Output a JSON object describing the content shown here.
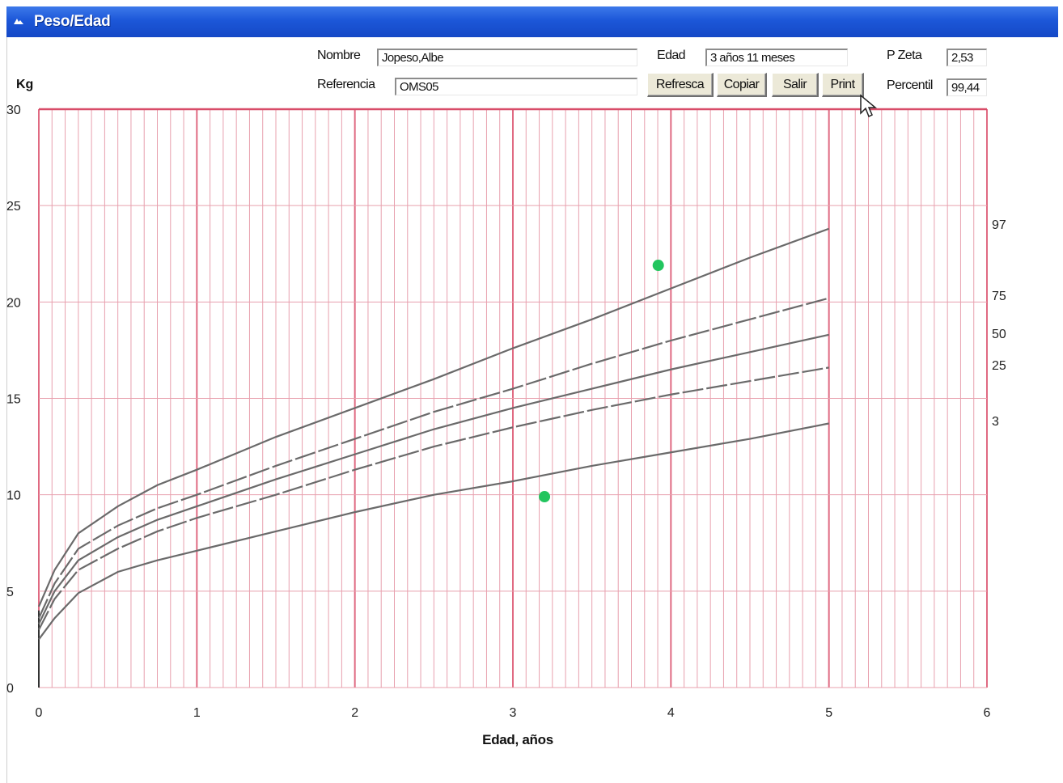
{
  "window": {
    "title": "Peso/Edad"
  },
  "form": {
    "nombre_label": "Nombre",
    "nombre_value": "Jopeso,Albe",
    "referencia_label": "Referencia",
    "referencia_value": "OMS05",
    "edad_label": "Edad",
    "edad_value": "3 años 11 meses",
    "pzeta_label": "P Zeta",
    "pzeta_value": "2,53",
    "percentil_label": "Percentil",
    "percentil_value": "99,44"
  },
  "buttons": {
    "refresca": "Refresca",
    "copiar": "Copiar",
    "salir": "Salir",
    "print": "Print"
  },
  "icons": {
    "window": "window-icon",
    "cursor": "mouse-pointer-icon"
  },
  "chart_data": {
    "type": "line",
    "title": "",
    "xlabel": "Edad, años",
    "ylabel": "Kg",
    "xlim": [
      0,
      6
    ],
    "ylim": [
      0,
      30
    ],
    "x_ticks": [
      0,
      1,
      2,
      3,
      4,
      5,
      6
    ],
    "y_ticks": [
      0,
      5,
      10,
      15,
      20,
      25,
      30
    ],
    "grid": true,
    "grid_color": "#e8a0ae",
    "grid_major_color": "#e06a82",
    "line_color": "#6a6a6a",
    "point_color": "#22c55e",
    "x": [
      0,
      0.1,
      0.25,
      0.5,
      0.75,
      1,
      1.5,
      2,
      2.5,
      3,
      3.5,
      4,
      4.5,
      5
    ],
    "series": [
      {
        "name": "97",
        "dashed": false,
        "values": [
          4.2,
          6.1,
          8.0,
          9.4,
          10.5,
          11.3,
          13.0,
          14.5,
          16.0,
          17.6,
          19.1,
          20.7,
          22.3,
          23.8
        ]
      },
      {
        "name": "75",
        "dashed": true,
        "values": [
          3.6,
          5.4,
          7.2,
          8.4,
          9.3,
          10.0,
          11.5,
          12.9,
          14.3,
          15.5,
          16.8,
          18.0,
          19.1,
          20.2
        ]
      },
      {
        "name": "50",
        "dashed": false,
        "values": [
          3.3,
          5.0,
          6.6,
          7.8,
          8.7,
          9.4,
          10.8,
          12.1,
          13.4,
          14.5,
          15.5,
          16.5,
          17.4,
          18.3
        ]
      },
      {
        "name": "25",
        "dashed": true,
        "values": [
          3.0,
          4.6,
          6.1,
          7.2,
          8.1,
          8.8,
          10.0,
          11.3,
          12.5,
          13.5,
          14.4,
          15.2,
          15.9,
          16.6
        ]
      },
      {
        "name": "3",
        "dashed": false,
        "values": [
          2.5,
          3.6,
          4.9,
          6.0,
          6.6,
          7.1,
          8.1,
          9.1,
          10.0,
          10.7,
          11.5,
          12.2,
          12.9,
          13.7
        ]
      }
    ],
    "points": [
      {
        "x": 3.2,
        "y": 9.9
      },
      {
        "x": 3.92,
        "y": 21.9
      }
    ]
  }
}
